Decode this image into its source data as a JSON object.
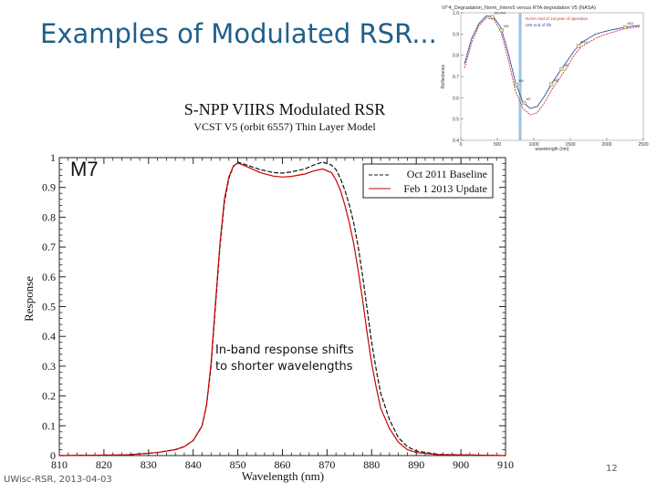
{
  "slide": {
    "title": "Examples of Modulated RSR...",
    "footer_left": "UWisc-RSR, 2013-04-03",
    "page_number": "12"
  },
  "chart_data": [
    {
      "type": "line",
      "title": "S-NPP VIIRS Modulated RSR",
      "subtitle": "VCST V5 (orbit 6557) Thin Layer Model",
      "band_label": "M7",
      "xlabel": "Wavelength (nm)",
      "ylabel": "Response",
      "xlim": [
        810,
        910
      ],
      "ylim": [
        0,
        1
      ],
      "xticks": [
        810,
        820,
        830,
        840,
        850,
        860,
        870,
        880,
        890,
        900,
        910
      ],
      "yticks": [
        0,
        0.1,
        0.2,
        0.3,
        0.4,
        0.5,
        0.6,
        0.7,
        0.8,
        0.9,
        1
      ],
      "ytick_labels": [
        "0",
        "0.1",
        "0.2",
        "0.3",
        "0.4",
        "0.5",
        "0.6",
        "0.7",
        "0.8",
        "0.9",
        "1"
      ],
      "legend": [
        "Oct 2011 Baseline",
        "Feb 1 2013 Update"
      ],
      "annotation": "In-band response shifts to shorter wavelengths",
      "series": [
        {
          "name": "Oct 2011 Baseline",
          "color": "#111111",
          "x": [
            810,
            825,
            832,
            836,
            838,
            840,
            842,
            843,
            844,
            845,
            846,
            847,
            848,
            849,
            850,
            852,
            855,
            858,
            860,
            862,
            865,
            867,
            869,
            871,
            872,
            873,
            874,
            875,
            876,
            877,
            878,
            879,
            880,
            881,
            882,
            884,
            886,
            888,
            890,
            895,
            910
          ],
          "y": [
            0,
            0.002,
            0.01,
            0.02,
            0.03,
            0.05,
            0.1,
            0.17,
            0.3,
            0.5,
            0.7,
            0.85,
            0.93,
            0.97,
            0.985,
            0.975,
            0.96,
            0.95,
            0.948,
            0.952,
            0.962,
            0.975,
            0.985,
            0.975,
            0.96,
            0.93,
            0.89,
            0.84,
            0.78,
            0.7,
            0.6,
            0.49,
            0.38,
            0.29,
            0.21,
            0.12,
            0.06,
            0.03,
            0.015,
            0.004,
            0
          ]
        },
        {
          "name": "Feb 1 2013 Update",
          "color": "#cc0000",
          "x": [
            810,
            825,
            832,
            836,
            838,
            840,
            842,
            843,
            844,
            845,
            846,
            847,
            848,
            849,
            850,
            852,
            855,
            858,
            860,
            862,
            865,
            867,
            869,
            871,
            872,
            873,
            874,
            875,
            876,
            877,
            878,
            879,
            880,
            881,
            882,
            884,
            886,
            888,
            890,
            895,
            910
          ],
          "y": [
            0,
            0.002,
            0.01,
            0.02,
            0.03,
            0.05,
            0.1,
            0.17,
            0.31,
            0.51,
            0.71,
            0.86,
            0.935,
            0.972,
            0.982,
            0.97,
            0.95,
            0.938,
            0.935,
            0.937,
            0.945,
            0.955,
            0.962,
            0.95,
            0.925,
            0.89,
            0.84,
            0.78,
            0.71,
            0.62,
            0.52,
            0.41,
            0.31,
            0.23,
            0.16,
            0.09,
            0.045,
            0.02,
            0.01,
            0.003,
            0
          ]
        }
      ]
    },
    {
      "type": "line",
      "title": "VI^4_Degradation_Norm_Intero5 versus RTA degradation V5 (NASA)",
      "ylabel": "Reflectance",
      "xlabel": "wavelength (nm)",
      "xlim": [
        0,
        2500
      ],
      "ylim": [
        0.4,
        1.0
      ],
      "xticks": [
        0,
        500,
        1000,
        1500,
        2000,
        2500
      ],
      "yticks": [
        0.4,
        0.5,
        0.6,
        0.7,
        0.8,
        0.9,
        1.0
      ],
      "ytick_labels": [
        "0.4",
        "0.5",
        "0.6",
        "0.7",
        "0.8",
        "0.9",
        "1.0"
      ],
      "legend": [
        "NASA end of 1st year of operation",
        "UW end of life"
      ],
      "band_markers": [
        "M1-M4",
        "M5",
        "M6",
        "M7",
        "M8",
        "M9",
        "M10",
        "M11"
      ],
      "series": [
        {
          "name": "NASA end of 1st year of operation",
          "color": "#d03030",
          "x": [
            50,
            150,
            250,
            350,
            450,
            550,
            650,
            750,
            850,
            950,
            1050,
            1150,
            1250,
            1350,
            1450,
            1550,
            1650,
            1750,
            1850,
            1950,
            2050,
            2150,
            2250,
            2350,
            2450
          ],
          "y": [
            0.74,
            0.86,
            0.94,
            0.975,
            0.97,
            0.91,
            0.78,
            0.63,
            0.55,
            0.52,
            0.53,
            0.58,
            0.64,
            0.69,
            0.74,
            0.8,
            0.84,
            0.86,
            0.88,
            0.895,
            0.905,
            0.915,
            0.925,
            0.93,
            0.935
          ]
        },
        {
          "name": "UW end of life",
          "color": "#3050a0",
          "x": [
            50,
            150,
            250,
            350,
            450,
            550,
            650,
            750,
            850,
            950,
            1050,
            1150,
            1250,
            1350,
            1450,
            1550,
            1650,
            1750,
            1850,
            1950,
            2050,
            2150,
            2250,
            2350,
            2450
          ],
          "y": [
            0.76,
            0.88,
            0.95,
            0.985,
            0.98,
            0.93,
            0.81,
            0.67,
            0.58,
            0.55,
            0.56,
            0.61,
            0.67,
            0.72,
            0.77,
            0.82,
            0.86,
            0.88,
            0.9,
            0.91,
            0.918,
            0.925,
            0.932,
            0.937,
            0.94
          ]
        }
      ]
    }
  ]
}
